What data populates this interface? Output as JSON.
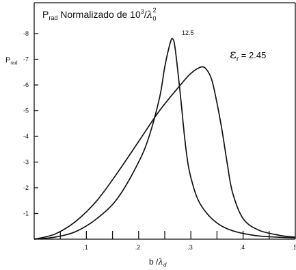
{
  "chart_data": {
    "type": "line",
    "title": {
      "prefix": "P",
      "sub": "rad",
      "main": " Normalizado de 10",
      "exp": "3",
      "slash": "/",
      "lambda": "λ",
      "lambda_sub": "0",
      "lambda_sup": "2"
    },
    "ylabel": {
      "base": "P",
      "sub": "rad"
    },
    "xlabel": {
      "base": "b /",
      "lambda": "λ",
      "sub": "d"
    },
    "annotations": {
      "peak_value": "12.5",
      "epsilon_symbol": "ε",
      "epsilon_sub": "r",
      "epsilon_value": " = 2.45"
    },
    "xlim": [
      0.0,
      0.5
    ],
    "ylim": [
      0.0,
      9.2
    ],
    "x_ticks": [
      0.05,
      0.1,
      0.15,
      0.2,
      0.25,
      0.3,
      0.35,
      0.4,
      0.45
    ],
    "x_tick_labels": [
      {
        "x": 0.1,
        "label": ".1"
      },
      {
        "x": 0.2,
        "label": ".2"
      },
      {
        "x": 0.3,
        "label": ".3"
      },
      {
        "x": 0.4,
        "label": ".4"
      },
      {
        "x": 0.5,
        "label": ".5"
      }
    ],
    "y_ticks": [
      {
        "y": 1,
        "label": "-1"
      },
      {
        "y": 2,
        "label": "-2"
      },
      {
        "y": 3,
        "label": "-3"
      },
      {
        "y": 4,
        "label": "-4"
      },
      {
        "y": 5,
        "label": "-5"
      },
      {
        "y": 6,
        "label": "-6"
      },
      {
        "y": 7,
        "label": "-7"
      },
      {
        "y": 8,
        "label": "-8"
      }
    ],
    "grid": false,
    "series": [
      {
        "x": [
          0.0,
          0.04,
          0.08,
          0.12,
          0.16,
          0.2,
          0.22,
          0.24,
          0.25,
          0.26,
          0.265,
          0.27,
          0.28,
          0.29,
          0.3,
          0.32,
          0.36,
          0.42,
          0.5
        ],
        "y": [
          0.0,
          0.08,
          0.3,
          0.8,
          1.6,
          3.0,
          4.0,
          5.5,
          6.7,
          7.6,
          7.8,
          7.4,
          5.6,
          3.6,
          2.4,
          1.3,
          0.5,
          0.15,
          0.05
        ]
      },
      {
        "x": [
          0.0,
          0.04,
          0.08,
          0.12,
          0.16,
          0.2,
          0.24,
          0.28,
          0.3,
          0.32,
          0.33,
          0.34,
          0.35,
          0.36,
          0.37,
          0.38,
          0.4,
          0.43,
          0.47,
          0.5
        ],
        "y": [
          0.0,
          0.2,
          0.7,
          1.5,
          2.6,
          3.8,
          5.0,
          6.0,
          6.45,
          6.7,
          6.6,
          6.2,
          5.3,
          4.2,
          2.9,
          1.8,
          0.8,
          0.35,
          0.15,
          0.08
        ]
      }
    ]
  }
}
